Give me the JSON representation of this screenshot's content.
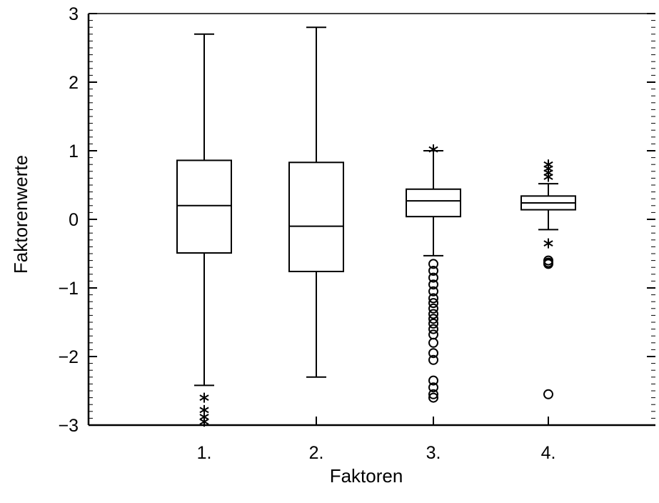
{
  "chart_data": {
    "type": "boxplot",
    "title": "",
    "xlabel": "Faktoren",
    "ylabel": "Faktorenwerte",
    "ylim": [
      -3,
      3
    ],
    "y_ticks": [
      "3",
      "2",
      "1",
      "0",
      "−1",
      "−2",
      "−3"
    ],
    "y_tick_values": [
      3,
      2,
      1,
      0,
      -1,
      -2,
      -3
    ],
    "categories": [
      "1.",
      "2.",
      "3.",
      "4."
    ],
    "grid": false,
    "boxes": [
      {
        "category": "1.",
        "whisker_low": -2.42,
        "q1": -0.49,
        "median": 0.2,
        "q3": 0.86,
        "whisker_high": 2.7,
        "outliers_circle": [],
        "outliers_star": [
          -2.6,
          -2.78,
          -2.88,
          -2.95
        ]
      },
      {
        "category": "2.",
        "whisker_low": -2.3,
        "q1": -0.76,
        "median": -0.1,
        "q3": 0.83,
        "whisker_high": 2.8,
        "outliers_circle": [],
        "outliers_star": []
      },
      {
        "category": "3.",
        "whisker_low": -0.53,
        "q1": 0.04,
        "median": 0.27,
        "q3": 0.44,
        "whisker_high": 1.0,
        "outliers_circle": [
          -0.65,
          -0.75,
          -0.85,
          -0.95,
          -1.05,
          -1.15,
          -1.22,
          -1.3,
          -1.38,
          -1.45,
          -1.52,
          -1.6,
          -1.68,
          -1.8,
          -1.95,
          -2.05,
          -2.35,
          -2.45,
          -2.55,
          -2.6
        ],
        "outliers_star": [
          1.02
        ]
      },
      {
        "category": "4.",
        "whisker_low": -0.15,
        "q1": 0.14,
        "median": 0.24,
        "q3": 0.34,
        "whisker_high": 0.52,
        "outliers_circle": [
          -0.6,
          -0.63,
          -0.65,
          -2.55
        ],
        "outliers_star": [
          0.62,
          0.68,
          0.74,
          0.8,
          -0.35
        ]
      }
    ]
  }
}
